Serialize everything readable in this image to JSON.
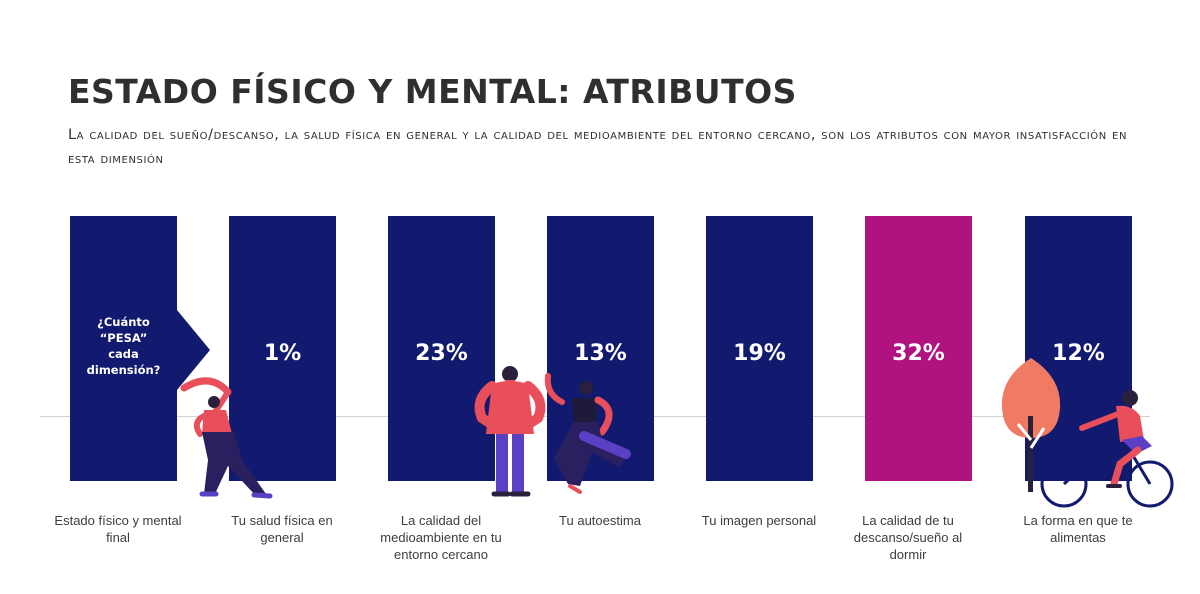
{
  "header": {
    "title": "ESTADO FÍSICO Y  MENTAL: ATRIBUTOS",
    "subtitle": "La calidad del sueño/descanso, la salud física en general y la calidad del medioambiente del entorno cercano, son los atributos con mayor insatisfacción en esta dimensión"
  },
  "question": {
    "line1": "¿Cuánto",
    "line2": "“PESA”",
    "line3": "cada",
    "line4": "dimensión?"
  },
  "columns": [
    {
      "label": "Estado físico y mental final",
      "value": null
    },
    {
      "label": "Tu salud física en general",
      "value": "1%",
      "percent": 1
    },
    {
      "label": "La calidad del medioambiente en tu entorno cercano",
      "value": "23%",
      "percent": 23
    },
    {
      "label": "Tu autoestima",
      "value": "13%",
      "percent": 13
    },
    {
      "label": "Tu imagen personal",
      "value": "19%",
      "percent": 19
    },
    {
      "label": "La calidad de tu descanso/sueño al dormir",
      "value": "32%",
      "percent": 32,
      "highlight": true
    },
    {
      "label": "La forma en que te alimentas",
      "value": "12%",
      "percent": 12
    }
  ],
  "colors": {
    "column": "#111a6e",
    "highlight": "#b0127f",
    "figure_red": "#e94e5b",
    "figure_purple": "#5b3fc4",
    "tree": "#f07a62"
  },
  "illustrations": [
    "stretching-woman",
    "standing-man",
    "dancing-woman",
    "tree",
    "cyclist"
  ]
}
